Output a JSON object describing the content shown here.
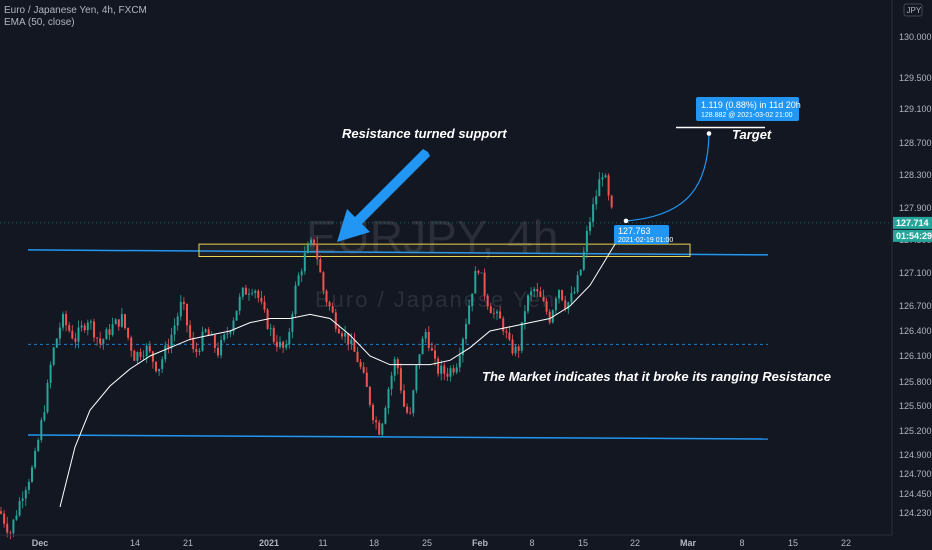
{
  "header": {
    "symbol_line": "Euro / Japanese Yen, 4h, FXCM",
    "indicator_line": "EMA (50, close)"
  },
  "watermark": {
    "main": "EURJPY, 4h",
    "sub": "Euro / Japanese Yen"
  },
  "currency_label": "JPY",
  "colors": {
    "background": "#131722",
    "up": "#26a69a",
    "down": "#ef5350",
    "trendline": "#2196f3",
    "zone": "#e8d44d",
    "ema": "#ffffff",
    "badge": "#2196f3"
  },
  "chart_data": {
    "type": "candlestick",
    "x_tick_labels": [
      "Dec",
      "14",
      "21",
      "2021",
      "11",
      "18",
      "25",
      "Feb",
      "8",
      "15",
      "22",
      "Mar",
      "8",
      "15",
      "22"
    ],
    "y_tick_labels": [
      "130.000",
      "129.500",
      "129.100",
      "128.700",
      "128.300",
      "127.900",
      "127.500",
      "127.100",
      "126.700",
      "126.400",
      "126.100",
      "125.800",
      "125.500",
      "125.200",
      "124.900",
      "124.700",
      "124.450",
      "124.230"
    ],
    "ylim": [
      124.0,
      130.35
    ],
    "price_path": [
      [
        0,
        124.25
      ],
      [
        10,
        124.0
      ],
      [
        22,
        124.45
      ],
      [
        34,
        124.8
      ],
      [
        46,
        125.6
      ],
      [
        52,
        126.1
      ],
      [
        62,
        126.55
      ],
      [
        75,
        126.3
      ],
      [
        88,
        126.55
      ],
      [
        100,
        126.25
      ],
      [
        112,
        126.45
      ],
      [
        122,
        126.55
      ],
      [
        134,
        126.1
      ],
      [
        146,
        126.2
      ],
      [
        158,
        125.95
      ],
      [
        170,
        126.3
      ],
      [
        182,
        126.75
      ],
      [
        194,
        126.1
      ],
      [
        206,
        126.4
      ],
      [
        218,
        126.15
      ],
      [
        230,
        126.45
      ],
      [
        242,
        126.85
      ],
      [
        254,
        126.95
      ],
      [
        264,
        126.6
      ],
      [
        274,
        126.3
      ],
      [
        286,
        126.15
      ],
      [
        296,
        126.95
      ],
      [
        306,
        127.35
      ],
      [
        314,
        127.5
      ],
      [
        324,
        126.85
      ],
      [
        336,
        126.5
      ],
      [
        348,
        126.3
      ],
      [
        358,
        126.05
      ],
      [
        366,
        125.75
      ],
      [
        374,
        125.35
      ],
      [
        380,
        125.2
      ],
      [
        388,
        125.7
      ],
      [
        396,
        126.1
      ],
      [
        404,
        125.5
      ],
      [
        410,
        125.35
      ],
      [
        418,
        126.1
      ],
      [
        426,
        126.4
      ],
      [
        436,
        125.95
      ],
      [
        446,
        125.9
      ],
      [
        456,
        126.0
      ],
      [
        464,
        126.4
      ],
      [
        472,
        126.9
      ],
      [
        478,
        127.2
      ],
      [
        486,
        126.8
      ],
      [
        494,
        126.6
      ],
      [
        502,
        126.5
      ],
      [
        510,
        126.2
      ],
      [
        518,
        126.15
      ],
      [
        526,
        126.75
      ],
      [
        534,
        126.9
      ],
      [
        542,
        126.75
      ],
      [
        550,
        126.55
      ],
      [
        558,
        126.95
      ],
      [
        566,
        126.7
      ],
      [
        574,
        126.85
      ],
      [
        582,
        127.2
      ],
      [
        588,
        127.65
      ],
      [
        594,
        127.95
      ],
      [
        598,
        128.15
      ],
      [
        602,
        128.35
      ],
      [
        606,
        128.2
      ],
      [
        610,
        127.9
      ],
      [
        614,
        127.76
      ]
    ],
    "ema_50": {
      "name": "EMA (50, close)",
      "path": [
        [
          60,
          124.3
        ],
        [
          75,
          125.0
        ],
        [
          90,
          125.45
        ],
        [
          110,
          125.75
        ],
        [
          130,
          125.95
        ],
        [
          150,
          126.1
        ],
        [
          170,
          126.2
        ],
        [
          190,
          126.3
        ],
        [
          210,
          126.35
        ],
        [
          230,
          126.4
        ],
        [
          250,
          126.5
        ],
        [
          270,
          126.55
        ],
        [
          290,
          126.55
        ],
        [
          310,
          126.6
        ],
        [
          330,
          126.55
        ],
        [
          350,
          126.35
        ],
        [
          370,
          126.1
        ],
        [
          390,
          126.0
        ],
        [
          410,
          126.0
        ],
        [
          430,
          126.0
        ],
        [
          450,
          126.05
        ],
        [
          470,
          126.2
        ],
        [
          490,
          126.4
        ],
        [
          510,
          126.45
        ],
        [
          530,
          126.5
        ],
        [
          550,
          126.55
        ],
        [
          570,
          126.7
        ],
        [
          590,
          126.95
        ],
        [
          610,
          127.35
        ],
        [
          620,
          127.55
        ]
      ]
    },
    "horizontal_levels": [
      {
        "name": "upper-resistance-line",
        "price": 127.34,
        "style": "solid"
      },
      {
        "name": "lower-support-line",
        "price": 125.12,
        "style": "solid"
      },
      {
        "name": "range-midline",
        "price": 126.24,
        "style": "dashed"
      },
      {
        "name": "last-price-line",
        "price": 127.714,
        "style": "dotted"
      }
    ],
    "resistance_zone": {
      "price_top": 127.45,
      "price_bottom": 127.3
    },
    "target_price": 128.882,
    "last_price": "127.714",
    "countdown": "01:54:29",
    "projection": {
      "line1": "1.119 (0.88%) in 11d 20h",
      "line2": "128.882 @ 2021-03-02  21:00"
    },
    "entry_tooltip": {
      "price": "127.763",
      "time": "2021-02-19 01:00"
    },
    "annotations": [
      "Resistance turned support",
      "Target",
      "The Market indicates that it broke its ranging Resistance"
    ]
  }
}
